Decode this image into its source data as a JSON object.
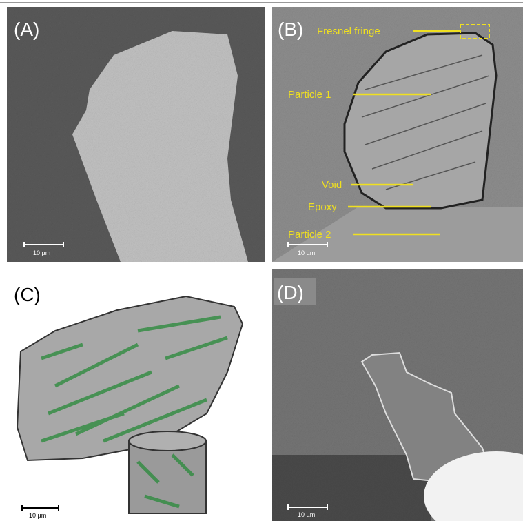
{
  "panels": [
    {
      "label": "(A)",
      "scale_bar": "10 µm"
    },
    {
      "label": "(B)",
      "scale_bar": "10 µm",
      "annotations": [
        "Fresnel fringe",
        "Particle 1",
        "Void",
        "Epoxy",
        "Particle 2"
      ]
    },
    {
      "label": "(C)",
      "scale_bar": "10 µm"
    },
    {
      "label": "(D)",
      "scale_bar": "10 µm"
    }
  ]
}
